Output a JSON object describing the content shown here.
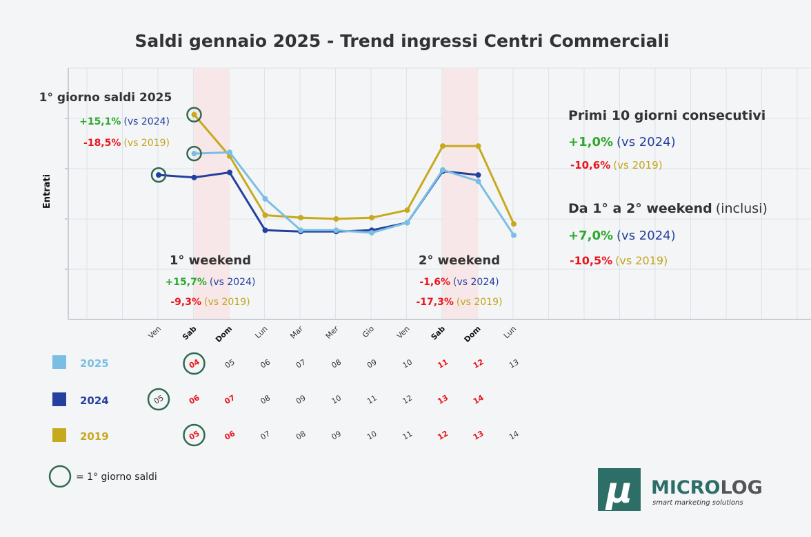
{
  "colors": {
    "s2025": "#7abfe3",
    "s2024": "#24409e",
    "s2019": "#c7a91e",
    "green": "#2da82d",
    "red": "#e8161c",
    "circle": "#2e6b4e",
    "weekend_band": "#f7e6e6",
    "logo_bg": "#2d6e67"
  },
  "chart_data": {
    "type": "line",
    "title": "Saldi gennaio 2025 - Trend ingressi Centri Commerciali",
    "ylabel": "Entrati",
    "categories": [
      "Ven",
      "Sab",
      "Dom",
      "Lun",
      "Mar",
      "Mer",
      "Gio",
      "Ven",
      "Sab",
      "Dom",
      "Lun"
    ],
    "ylim": [
      0,
      100
    ],
    "grid": true,
    "series": [
      {
        "name": "2025",
        "values": [
          null,
          66,
          66.5,
          48,
          35.5,
          35.5,
          34.5,
          38.5,
          59.5,
          55,
          33.5
        ]
      },
      {
        "name": "2024",
        "values": [
          57.5,
          56.5,
          58.5,
          35.5,
          35,
          35,
          35.5,
          38.5,
          59,
          57.5,
          null
        ]
      },
      {
        "name": "2019",
        "values": [
          null,
          81.5,
          65,
          41.5,
          40.5,
          40,
          40.5,
          43.5,
          69,
          69,
          38
        ]
      }
    ],
    "weekends": [
      [
        1,
        2
      ],
      [
        8,
        9
      ]
    ],
    "first_day_markers": {
      "2025": 1,
      "2024": 0,
      "2019": 1
    }
  },
  "ann_first_day": {
    "title": "1° giorno saldi 2025",
    "g1": "+15,1%",
    "v1": "(vs 2024)",
    "g2": "-18,5%",
    "v2": "(vs 2019)"
  },
  "ann_weekend1": {
    "title": "1° weekend",
    "g1": "+15,7%",
    "v1": "(vs 2024)",
    "g2": "-9,3%",
    "v2": "(vs 2019)"
  },
  "ann_weekend2": {
    "title": "2° weekend",
    "g1": "-1,6%",
    "v1": "(vs 2024)",
    "g2": "-17,3%",
    "v2": "(vs 2019)"
  },
  "ann_ten_days": {
    "title": "Primi 10 giorni consecutivi",
    "g1": "+1,0%",
    "v1": "(vs 2024)",
    "g2": "-10,6%",
    "v2": "(vs 2019)"
  },
  "ann_weekends": {
    "title": "Da 1° a 2° weekend",
    "title2": "(inclusi)",
    "g1": "+7,0%",
    "v1": "(vs 2024)",
    "g2": "-10,5%",
    "v2": "(vs 2019)"
  },
  "legend": {
    "y2025": "2025",
    "y2024": "2024",
    "y2019": "2019",
    "dates2025": [
      "04",
      "05",
      "06",
      "07",
      "08",
      "09",
      "10",
      "11",
      "12",
      "13"
    ],
    "dates2024": [
      "05",
      "06",
      "07",
      "08",
      "09",
      "10",
      "11",
      "12",
      "13",
      "14"
    ],
    "dates2019": [
      "05",
      "06",
      "07",
      "08",
      "09",
      "10",
      "11",
      "12",
      "13",
      "14"
    ],
    "circle_note": "= 1° giorno saldi"
  },
  "logo": {
    "glyph": "μ",
    "name_a": "MICRO",
    "name_b": "LOG",
    "tagline": "smart marketing solutions"
  }
}
